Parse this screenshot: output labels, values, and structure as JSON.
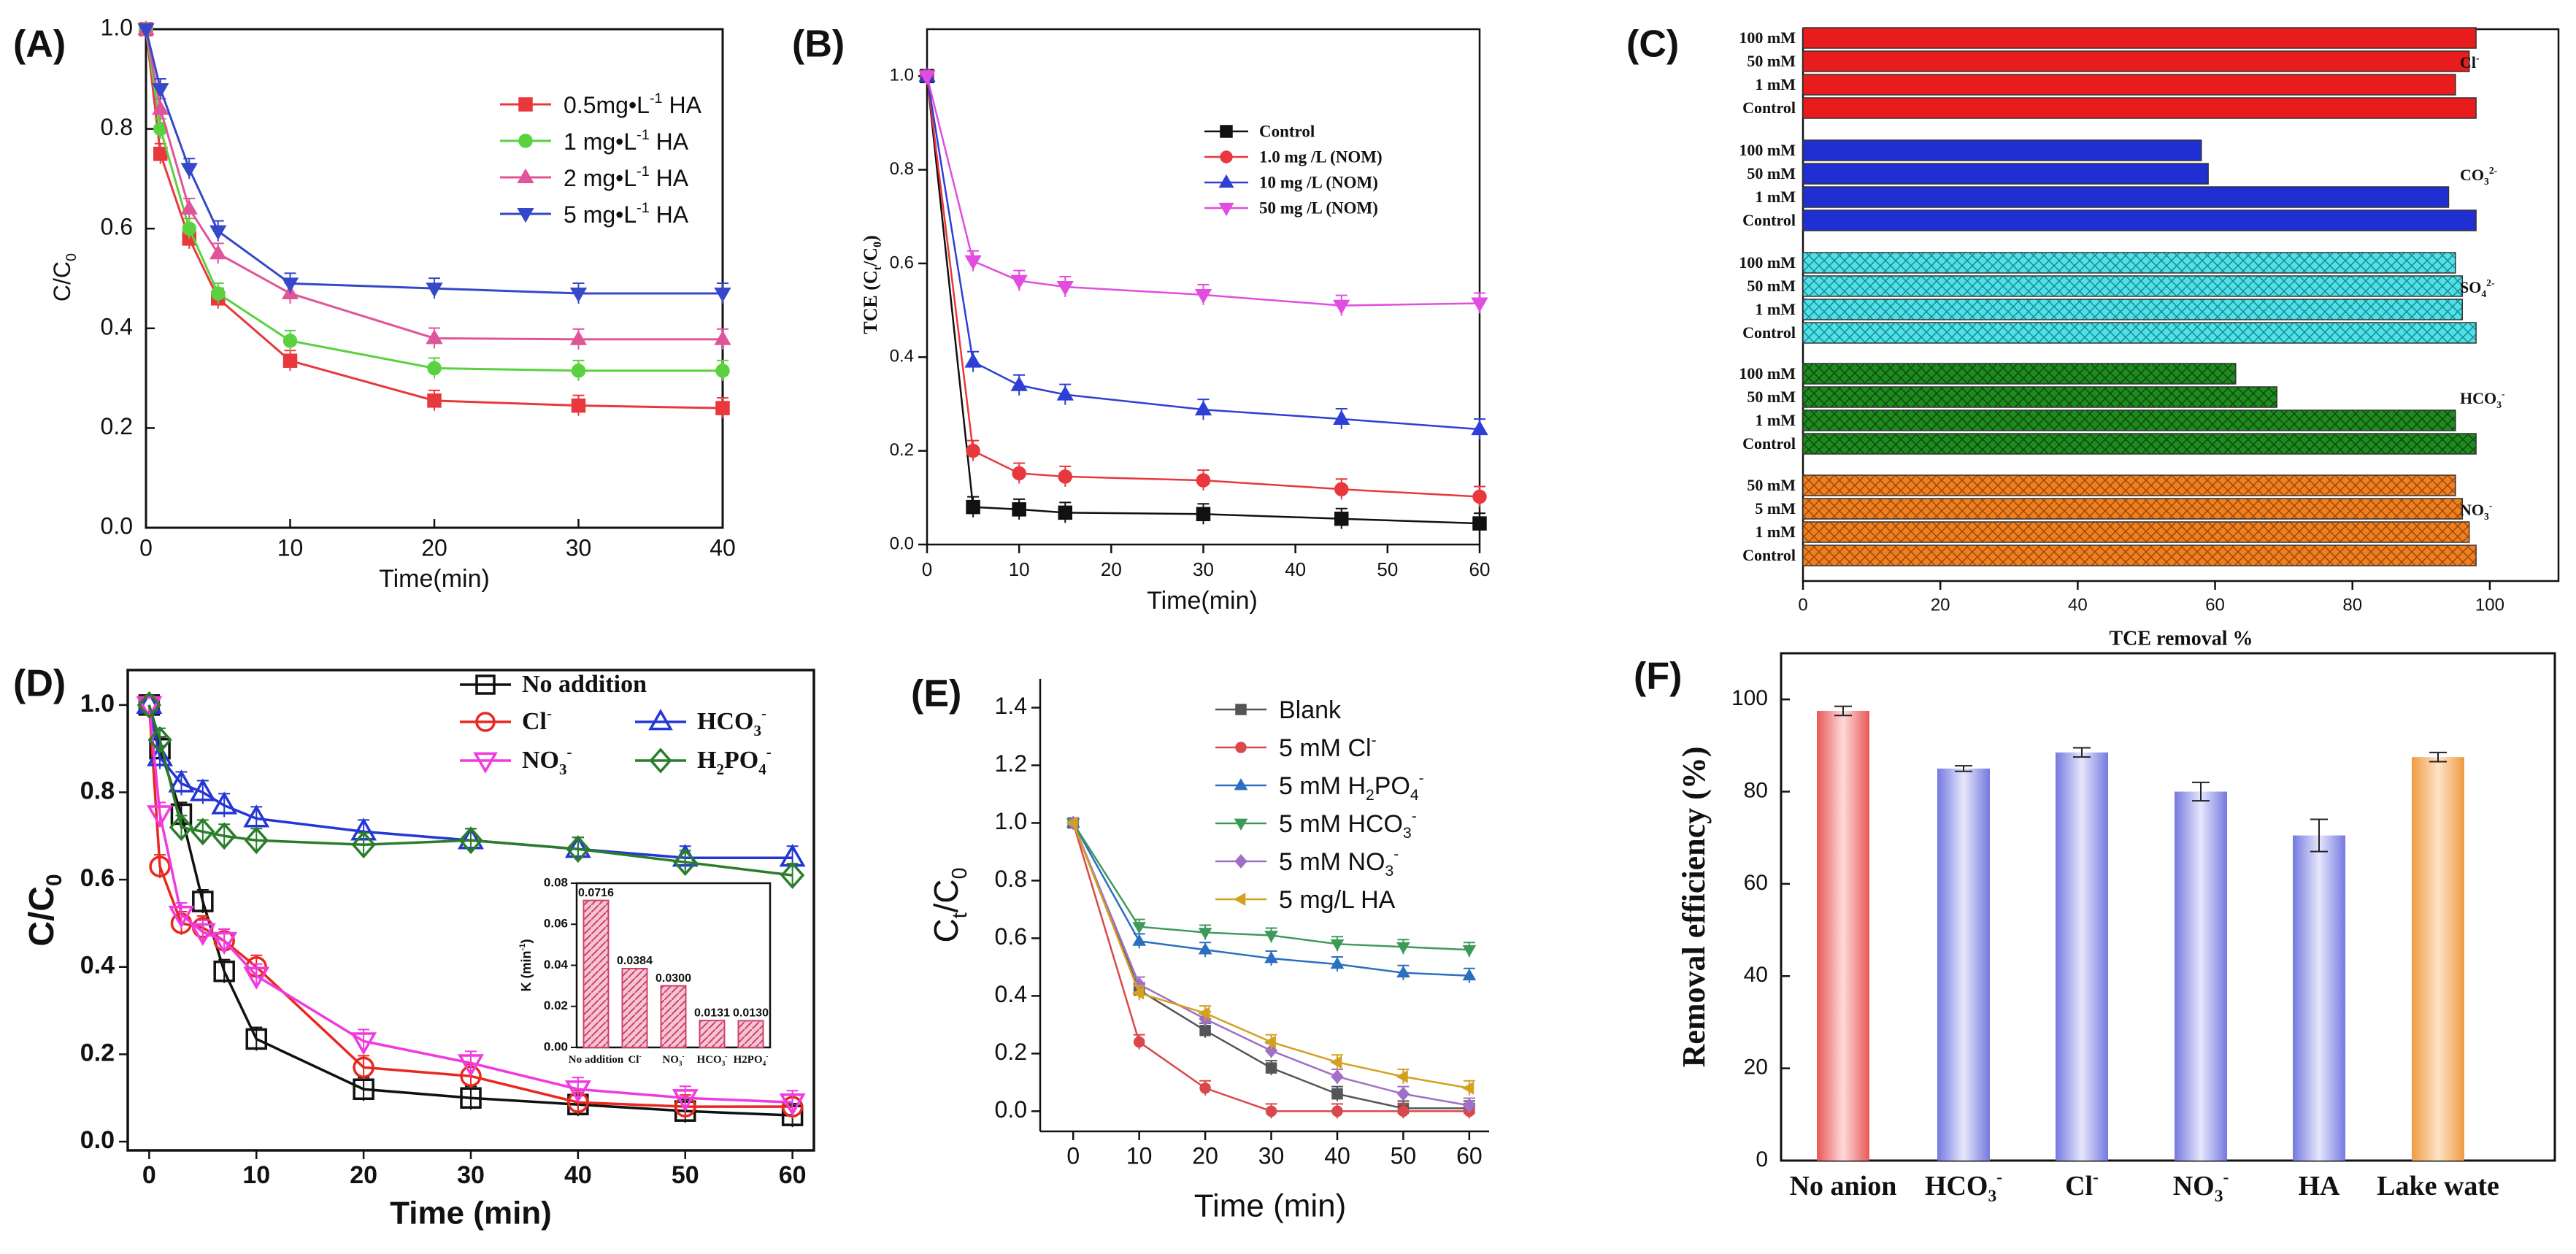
{
  "figure": {
    "panels": [
      "(A)",
      "(B)",
      "(C)",
      "(D)",
      "(E)",
      "(F)"
    ]
  },
  "chart_data": [
    {
      "id": "A",
      "type": "line",
      "panel_label": "(A)",
      "title": "",
      "xlabel": "Time(min)",
      "ylabel": "C/C0",
      "xlim": [
        0,
        40
      ],
      "ylim": [
        0,
        1.0
      ],
      "xticks": [
        "0",
        "10",
        "20",
        "30",
        "40"
      ],
      "yticks": [
        "0.0",
        "0.2",
        "0.4",
        "0.6",
        "0.8",
        "1.0"
      ],
      "legend_position": "top-right",
      "x": [
        0,
        1,
        3,
        5,
        10,
        20,
        30,
        40
      ],
      "series": [
        {
          "name": "0.5mg•L-1 HA",
          "legend_text": "0.5mg•L",
          "legend_sup": "-1",
          "legend_tail": " HA",
          "color": "#e8383d",
          "marker": "square",
          "values": [
            1.0,
            0.75,
            0.58,
            0.46,
            0.335,
            0.255,
            0.245,
            0.24
          ]
        },
        {
          "name": "1 mg•L-1 HA",
          "legend_text": "1 mg•L",
          "legend_sup": "-1",
          "legend_tail": "  HA",
          "color": "#5ad13f",
          "marker": "circle",
          "values": [
            1.0,
            0.8,
            0.6,
            0.47,
            0.375,
            0.32,
            0.315,
            0.315
          ]
        },
        {
          "name": "2 mg•L-1 HA",
          "legend_text": "2 mg•L",
          "legend_sup": "-1",
          "legend_tail": "  HA",
          "color": "#e0559a",
          "marker": "triangle-up",
          "values": [
            1.0,
            0.84,
            0.64,
            0.55,
            0.47,
            0.38,
            0.378,
            0.378
          ]
        },
        {
          "name": "5 mg•L-1 HA",
          "legend_text": "5 mg•L",
          "legend_sup": "-1",
          "legend_tail": "  HA",
          "color": "#3548c9",
          "marker": "triangle-down",
          "values": [
            1.0,
            0.88,
            0.72,
            0.595,
            0.49,
            0.48,
            0.47,
            0.47
          ]
        }
      ]
    },
    {
      "id": "B",
      "type": "line",
      "panel_label": "(B)",
      "title": "",
      "xlabel": "Time(min)",
      "ylabel": "TCE (Ct/C0)",
      "xlim": [
        0,
        60
      ],
      "ylim": [
        0,
        1.1
      ],
      "xticks": [
        "0",
        "10",
        "20",
        "30",
        "40",
        "50",
        "60"
      ],
      "yticks": [
        "0.0",
        "0.2",
        "0.4",
        "0.6",
        "0.8",
        "1.0"
      ],
      "legend_position": "top-right",
      "x": [
        0,
        5,
        10,
        15,
        30,
        45,
        60
      ],
      "series": [
        {
          "name": "Control",
          "color": "#111111",
          "marker": "square",
          "values": [
            1.0,
            0.08,
            0.075,
            0.068,
            0.065,
            0.055,
            0.045
          ]
        },
        {
          "name": "1.0 mg /L (NOM)",
          "color": "#e8383d",
          "marker": "circle",
          "values": [
            1.0,
            0.2,
            0.152,
            0.145,
            0.137,
            0.118,
            0.102
          ]
        },
        {
          "name": "10 mg /L (NOM)",
          "color": "#2d3fd6",
          "marker": "triangle-up",
          "values": [
            1.0,
            0.39,
            0.34,
            0.32,
            0.288,
            0.268,
            0.246
          ]
        },
        {
          "name": "50 mg /L (NOM)",
          "color": "#e24ce0",
          "marker": "triangle-down",
          "values": [
            1.0,
            0.605,
            0.563,
            0.55,
            0.533,
            0.51,
            0.515
          ]
        }
      ]
    },
    {
      "id": "C",
      "type": "bar",
      "orientation": "horizontal",
      "panel_label": "(C)",
      "title": "",
      "xlabel": "TCE removal %",
      "ylabel": "",
      "xlim": [
        0,
        110
      ],
      "xticks": [
        "0",
        "20",
        "40",
        "60",
        "80",
        "100"
      ],
      "groups": [
        {
          "ion": "Cl-",
          "ion_base": "Cl",
          "ion_sup": "-",
          "ion_sub": "",
          "color": "#e81c1c",
          "pattern": "solid",
          "categories": [
            "100 mM",
            "50 mM",
            "1 mM",
            "Control"
          ],
          "values": [
            98,
            97,
            95,
            98
          ]
        },
        {
          "ion": "CO32-",
          "ion_base": "CO",
          "ion_sup": "2-",
          "ion_sub": "3",
          "color": "#1f2fd1",
          "pattern": "solid",
          "categories": [
            "100 mM",
            "50 mM",
            "1 mM",
            "Control"
          ],
          "values": [
            58,
            59,
            94,
            98
          ]
        },
        {
          "ion": "SO42-",
          "ion_base": "SO",
          "ion_sup": "2-",
          "ion_sub": "4",
          "color": "#4fe0e8",
          "pattern": "crosshatch",
          "categories": [
            "100 mM",
            "50 mM",
            "1 mM",
            "Control"
          ],
          "values": [
            95,
            96,
            96,
            98
          ]
        },
        {
          "ion": "HCO3-",
          "ion_base": "HCO",
          "ion_sup": "-",
          "ion_sub": "3",
          "color": "#1f8a1f",
          "pattern": "crosshatch",
          "categories": [
            "100 mM",
            "50 mM",
            "1 mM",
            "Control"
          ],
          "values": [
            63,
            69,
            95,
            98
          ]
        },
        {
          "ion": "NO3-",
          "ion_base": "NO",
          "ion_sup": "-",
          "ion_sub": "3",
          "color": "#f07f20",
          "pattern": "crosshatch",
          "categories": [
            "50 mM",
            "5 mM",
            "1 mM",
            "Control"
          ],
          "values": [
            95,
            96,
            97,
            98
          ]
        }
      ]
    },
    {
      "id": "D",
      "type": "line",
      "panel_label": "(D)",
      "title": "",
      "xlabel": "Time (min)",
      "ylabel": "C/C0",
      "xlim": [
        -2,
        62
      ],
      "ylim": [
        -0.02,
        1.08
      ],
      "xticks": [
        "0",
        "10",
        "20",
        "30",
        "40",
        "50",
        "60"
      ],
      "yticks": [
        "0.0",
        "0.2",
        "0.4",
        "0.6",
        "0.8",
        "1.0"
      ],
      "legend_position": "top-right",
      "x": [
        0,
        1,
        3,
        5,
        7,
        10,
        20,
        30,
        40,
        50,
        60
      ],
      "series": [
        {
          "name": "No addition",
          "legend_base": "No addition",
          "legend_sup": "",
          "legend_sub": "",
          "color": "#111111",
          "marker": "square-open",
          "values": [
            1.0,
            0.9,
            0.75,
            0.55,
            0.39,
            0.235,
            0.12,
            0.1,
            0.085,
            0.07,
            0.06
          ]
        },
        {
          "name": "Cl-",
          "legend_base": "Cl",
          "legend_sup": "-",
          "legend_sub": "",
          "color": "#e8281f",
          "marker": "circle-open",
          "values": [
            1.0,
            0.63,
            0.5,
            0.49,
            0.46,
            0.4,
            0.17,
            0.15,
            0.09,
            0.08,
            0.08
          ]
        },
        {
          "name": "HCO3-",
          "legend_base": "HCO",
          "legend_sup": "-",
          "legend_sub": "3",
          "color": "#2437d6",
          "marker": "triangle-up-open",
          "values": [
            1.0,
            0.88,
            0.82,
            0.8,
            0.77,
            0.74,
            0.71,
            0.69,
            0.67,
            0.65,
            0.65
          ]
        },
        {
          "name": "NO3-",
          "legend_base": "NO",
          "legend_sup": "-",
          "legend_sub": "3",
          "color": "#f03adf",
          "marker": "triangle-down-open",
          "values": [
            1.0,
            0.75,
            0.52,
            0.48,
            0.46,
            0.38,
            0.23,
            0.18,
            0.12,
            0.1,
            0.09
          ]
        },
        {
          "name": "H2PO4-",
          "legend_base": "H",
          "legend_sup": "-",
          "legend_sub": "2",
          "legend_mid": "PO",
          "legend_sub2": "4",
          "color": "#2a7d2a",
          "marker": "diamond-open",
          "values": [
            1.0,
            0.92,
            0.72,
            0.71,
            0.7,
            0.69,
            0.68,
            0.69,
            0.67,
            0.64,
            0.61
          ]
        }
      ],
      "inset": {
        "type": "bar",
        "ylabel": "K (min-1)",
        "ylim": [
          0,
          0.08
        ],
        "yticks": [
          "0.00",
          "0.02",
          "0.04",
          "0.06",
          "0.08"
        ],
        "categories": [
          "No addition",
          "Cl",
          "NO3",
          "HCO3",
          "H2PO4"
        ],
        "cat_sup": [
          "",
          "-",
          "-",
          "-",
          "-"
        ],
        "cat_sub": [
          "",
          "",
          "3",
          "3",
          "4"
        ],
        "values": [
          0.0716,
          0.0384,
          0.03,
          0.0131,
          0.013
        ],
        "labels": [
          "0.0716",
          "0.0384",
          "0.0300",
          "0.0131",
          "0.0130"
        ],
        "color": "#e0557a"
      }
    },
    {
      "id": "E",
      "type": "line",
      "panel_label": "(E)",
      "title": "",
      "xlabel": "Time (min)",
      "ylabel": "Ct/C0",
      "xlim": [
        -5,
        63
      ],
      "ylim": [
        -0.07,
        1.5
      ],
      "xticks": [
        "0",
        "10",
        "20",
        "30",
        "40",
        "50",
        "60"
      ],
      "yticks": [
        "0.0",
        "0.2",
        "0.4",
        "0.6",
        "0.8",
        "1.0",
        "1.2",
        "1.4"
      ],
      "legend_position": "top-right",
      "x": [
        0,
        10,
        20,
        30,
        40,
        50,
        60
      ],
      "series": [
        {
          "name": "Blank",
          "legend_base": "Blank",
          "legend_sup": "",
          "legend_sub": "",
          "color": "#555555",
          "marker": "square",
          "values": [
            1.0,
            0.42,
            0.28,
            0.15,
            0.06,
            0.01,
            0.01
          ]
        },
        {
          "name": "5 mM Cl-",
          "legend_base": "5 mM Cl",
          "legend_sup": "-",
          "legend_sub": "",
          "color": "#d9484a",
          "marker": "circle",
          "values": [
            1.0,
            0.24,
            0.08,
            0.0,
            0.0,
            0.0,
            0.0
          ]
        },
        {
          "name": "5 mM H2PO4-",
          "legend_base": "5 mM H",
          "legend_sup": "-",
          "legend_sub": "2",
          "legend_mid": "PO",
          "legend_sub2": "4",
          "color": "#2a6fc0",
          "marker": "triangle-up",
          "values": [
            1.0,
            0.59,
            0.56,
            0.53,
            0.51,
            0.48,
            0.47
          ]
        },
        {
          "name": "5 mM HCO3-",
          "legend_base": "5 mM HCO",
          "legend_sup": "-",
          "legend_sub": "3",
          "color": "#3f9a5a",
          "marker": "triangle-down",
          "values": [
            1.0,
            0.64,
            0.62,
            0.61,
            0.58,
            0.57,
            0.56
          ]
        },
        {
          "name": "5 mM NO3-",
          "legend_base": "5 mM NO",
          "legend_sup": "-",
          "legend_sub": "3",
          "color": "#a070c8",
          "marker": "diamond",
          "values": [
            1.0,
            0.44,
            0.32,
            0.21,
            0.12,
            0.06,
            0.02
          ]
        },
        {
          "name": "5 mg/L HA",
          "legend_base": "5 mg/L HA",
          "legend_sup": "",
          "legend_sub": "",
          "color": "#d4a020",
          "marker": "tri-left",
          "values": [
            1.0,
            0.41,
            0.34,
            0.24,
            0.17,
            0.12,
            0.08
          ]
        }
      ]
    },
    {
      "id": "F",
      "type": "bar",
      "panel_label": "(F)",
      "title": "",
      "xlabel": "",
      "ylabel": "Removal efficiency (%)",
      "ylim": [
        0,
        110
      ],
      "yticks": [
        "0",
        "20",
        "40",
        "60",
        "80",
        "100"
      ],
      "categories": [
        "No anion",
        "HCO3-",
        "Cl-",
        "NO3-",
        "HA",
        "Lake wate"
      ],
      "cat_base": [
        "No anion",
        "HCO",
        "Cl",
        "NO",
        "HA",
        "Lake wate"
      ],
      "cat_sup": [
        "",
        "-",
        "-",
        "-",
        "",
        ""
      ],
      "cat_sub": [
        "",
        "3",
        "",
        "3",
        "",
        ""
      ],
      "values": [
        97.5,
        85,
        88.5,
        80,
        70.5,
        87.5
      ],
      "errors": [
        1,
        0.6,
        1,
        2,
        3.5,
        1
      ],
      "colors": [
        "#f07c7c",
        "#8f93ea",
        "#8f93ea",
        "#8f93ea",
        "#8f93ea",
        "#f6b26b"
      ]
    }
  ]
}
